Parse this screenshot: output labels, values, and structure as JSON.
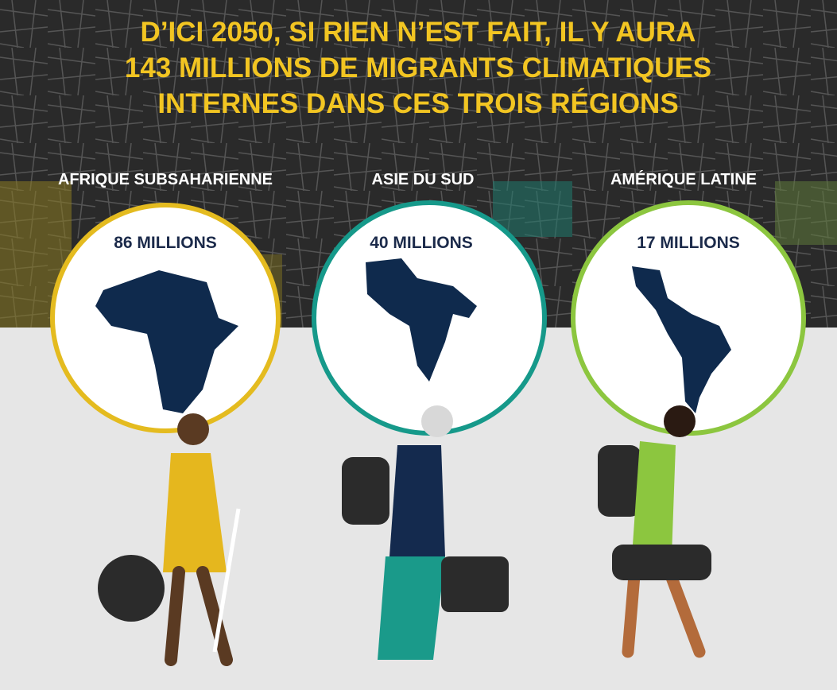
{
  "header": {
    "title_lines": [
      "D’ICI 2050, SI RIEN N’EST FAIT, IL Y AURA",
      "143 MILLIONS DE MIGRANTS CLIMATIQUES",
      "INTERNES DANS CES TROIS RÉGIONS"
    ]
  },
  "regions": [
    {
      "name": "AFRIQUE SUBSAHARIENNE",
      "label": "86 MILLIONS"
    },
    {
      "name": "ASIE DU SUD",
      "label": "40 MILLIONS"
    },
    {
      "name": "AMÉRIQUE LATINE",
      "label": "17 MILLIONS"
    }
  ]
}
